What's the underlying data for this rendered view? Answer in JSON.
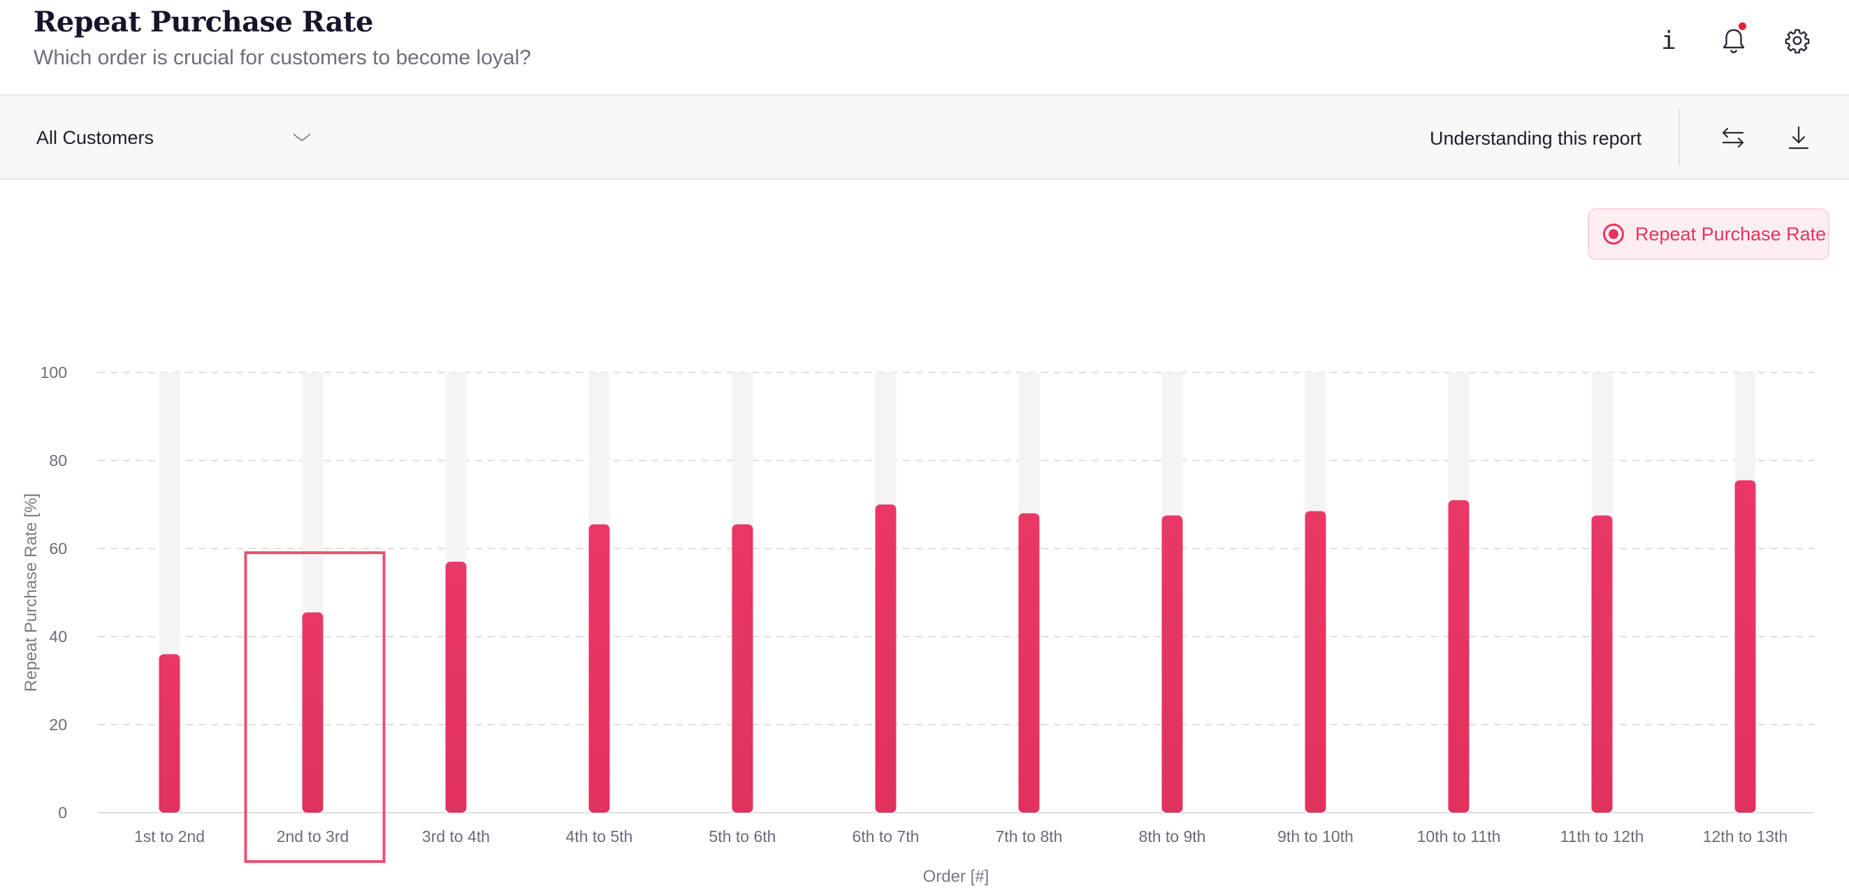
{
  "header": {
    "title": "Repeat Purchase Rate",
    "subtitle": "Which order is crucial for customers to become loyal?",
    "info_glyph": "i",
    "icons": [
      "info-icon",
      "bell-icon",
      "gear-icon"
    ]
  },
  "toolbar": {
    "segment_selected": "All Customers",
    "understanding_label": "Understanding this report",
    "icons": [
      "chevron-down-icon",
      "swap-icon",
      "download-icon"
    ]
  },
  "legend": {
    "label": "Repeat Purchase Rate"
  },
  "colors": {
    "accent": "#e8335f",
    "bar_track": "#f4f4f4",
    "notification": "#e8213a",
    "highlight_box": "#e85270",
    "gridline": "#dddde2"
  },
  "chart_data": {
    "type": "bar",
    "title": "",
    "xlabel": "Order [#]",
    "ylabel": "Repeat Purchase Rate [%]",
    "ylim": [
      0,
      100
    ],
    "yticks": [
      0,
      20,
      40,
      60,
      80,
      100
    ],
    "grid": true,
    "legend_position": "top-right",
    "categories": [
      "1st to 2nd",
      "2nd to 3rd",
      "3rd to 4th",
      "4th to 5th",
      "5th to 6th",
      "6th to 7th",
      "7th to 8th",
      "8th to 9th",
      "9th to 10th",
      "10th to 11th",
      "11th to 12th",
      "12th to 13th"
    ],
    "series": [
      {
        "name": "Repeat Purchase Rate",
        "values": [
          36,
          45.5,
          57,
          65.5,
          65.5,
          70,
          68,
          67.5,
          68.5,
          71,
          67.5,
          75.5
        ]
      }
    ],
    "highlighted_category": "2nd to 3rd"
  }
}
